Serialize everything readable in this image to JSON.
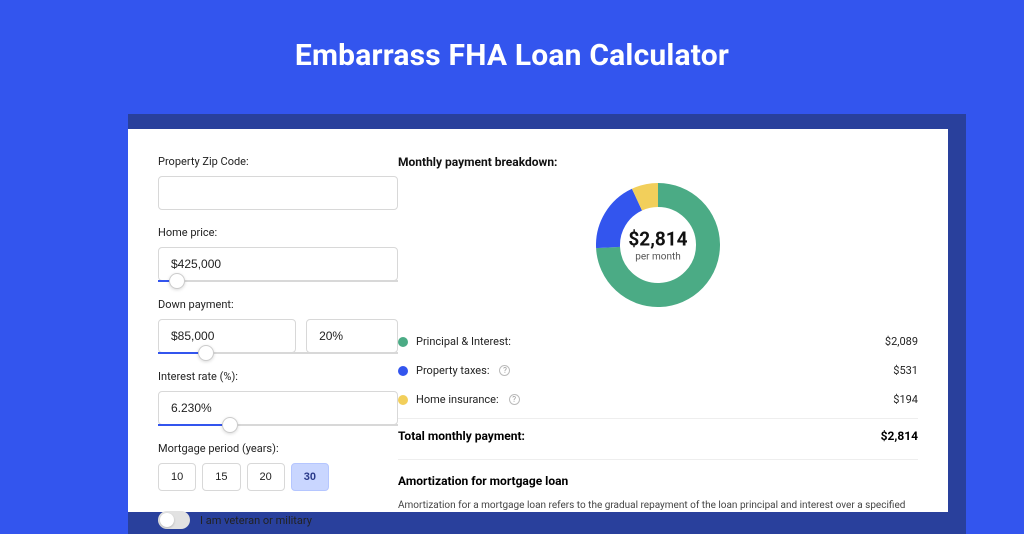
{
  "page": {
    "title": "Embarrass FHA Loan Calculator",
    "bg_color": "#3355ee",
    "card_shadow_color": "#29409c"
  },
  "form": {
    "zip_label": "Property Zip Code:",
    "zip_value": "",
    "home_price_label": "Home price:",
    "home_price_value": "$425,000",
    "home_price_slider_pct": 8,
    "down_payment_label": "Down payment:",
    "down_payment_value": "$85,000",
    "down_payment_pct_value": "20%",
    "down_payment_slider_pct": 20,
    "interest_label": "Interest rate (%):",
    "interest_value": "6.230%",
    "interest_slider_pct": 30,
    "period_label": "Mortgage period (years):",
    "period_options": [
      "10",
      "15",
      "20",
      "30"
    ],
    "period_selected_index": 3,
    "veteran_label": "I am veteran or military",
    "veteran_on": false
  },
  "breakdown": {
    "title": "Monthly payment breakdown:",
    "donut": {
      "center_value": "$2,814",
      "center_sub": "per month",
      "slices": [
        {
          "label": "Principal & Interest:",
          "value": "$2,089",
          "color": "#4bab85",
          "pct": 74.2
        },
        {
          "label": "Property taxes:",
          "value": "$531",
          "color": "#3355ee",
          "pct": 18.9,
          "info": true
        },
        {
          "label": "Home insurance:",
          "value": "$194",
          "color": "#f2cf5b",
          "pct": 6.9,
          "info": true
        }
      ],
      "stroke_width": 24,
      "radius": 50,
      "bg": "#ffffff"
    },
    "total_label": "Total monthly payment:",
    "total_value": "$2,814"
  },
  "amortization": {
    "title": "Amortization for mortgage loan",
    "text": "Amortization for a mortgage loan refers to the gradual repayment of the loan principal and interest over a specified"
  }
}
